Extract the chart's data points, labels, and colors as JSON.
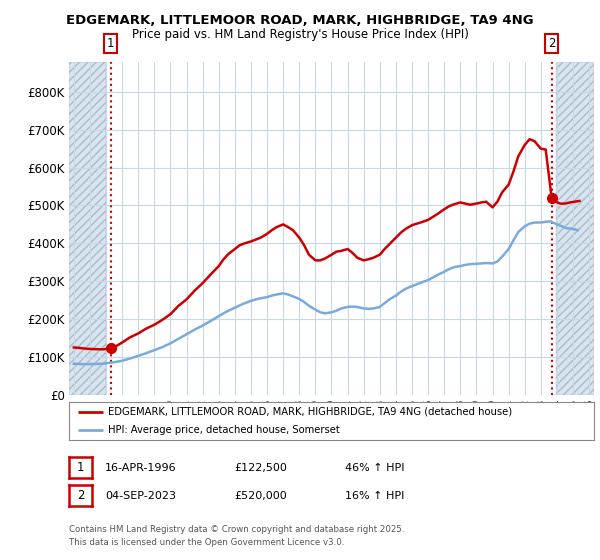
{
  "title1": "EDGEMARK, LITTLEMOOR ROAD, MARK, HIGHBRIDGE, TA9 4NG",
  "title2": "Price paid vs. HM Land Registry's House Price Index (HPI)",
  "ylim": [
    0,
    880000
  ],
  "xlim_start": 1993.7,
  "xlim_end": 2026.3,
  "yticks": [
    0,
    100000,
    200000,
    300000,
    400000,
    500000,
    600000,
    700000,
    800000
  ],
  "ytick_labels": [
    "£0",
    "£100K",
    "£200K",
    "£300K",
    "£400K",
    "£500K",
    "£600K",
    "£700K",
    "£800K"
  ],
  "xticks": [
    1994,
    1995,
    1996,
    1997,
    1998,
    1999,
    2000,
    2001,
    2002,
    2003,
    2004,
    2005,
    2006,
    2007,
    2008,
    2009,
    2010,
    2011,
    2012,
    2013,
    2014,
    2015,
    2016,
    2017,
    2018,
    2019,
    2020,
    2021,
    2022,
    2023,
    2024,
    2025,
    2026
  ],
  "bg_color": "#ffffff",
  "grid_color": "#c8d8e8",
  "hatch_color": "#d8e4ee",
  "red_line_color": "#cc0000",
  "blue_line_color": "#7aaadd",
  "vline_color": "#cc0000",
  "annotation_box_color": "#cc0000",
  "sale1_x": 1996.29,
  "sale1_y": 122500,
  "sale1_label": "1",
  "sale2_x": 2023.67,
  "sale2_y": 520000,
  "sale2_label": "2",
  "hatch_left_end": 1996.0,
  "hatch_right_start": 2023.92,
  "legend_line1": "EDGEMARK, LITTLEMOOR ROAD, MARK, HIGHBRIDGE, TA9 4NG (detached house)",
  "legend_line2": "HPI: Average price, detached house, Somerset",
  "footnote_line1": "Contains HM Land Registry data © Crown copyright and database right 2025.",
  "footnote_line2": "This data is licensed under the Open Government Licence v3.0.",
  "table_row1": [
    "1",
    "16-APR-1996",
    "£122,500",
    "46% ↑ HPI"
  ],
  "table_row2": [
    "2",
    "04-SEP-2023",
    "£520,000",
    "16% ↑ HPI"
  ],
  "red_line_x": [
    1994.0,
    1994.3,
    1994.6,
    1995.0,
    1995.4,
    1995.8,
    1996.0,
    1996.29,
    1996.6,
    1997.0,
    1997.5,
    1998.0,
    1998.5,
    1999.0,
    1999.5,
    2000.0,
    2000.5,
    2001.0,
    2001.5,
    2002.0,
    2002.5,
    2003.0,
    2003.3,
    2003.6,
    2004.0,
    2004.3,
    2004.6,
    2005.0,
    2005.3,
    2005.6,
    2006.0,
    2006.3,
    2006.6,
    2007.0,
    2007.3,
    2007.6,
    2008.0,
    2008.3,
    2008.6,
    2009.0,
    2009.3,
    2009.6,
    2010.0,
    2010.3,
    2010.6,
    2011.0,
    2011.3,
    2011.6,
    2012.0,
    2012.3,
    2012.6,
    2013.0,
    2013.3,
    2013.6,
    2014.0,
    2014.3,
    2014.6,
    2015.0,
    2015.3,
    2015.6,
    2016.0,
    2016.3,
    2016.6,
    2017.0,
    2017.3,
    2017.6,
    2018.0,
    2018.3,
    2018.6,
    2019.0,
    2019.3,
    2019.6,
    2020.0,
    2020.3,
    2020.6,
    2021.0,
    2021.3,
    2021.6,
    2022.0,
    2022.3,
    2022.6,
    2023.0,
    2023.3,
    2023.67,
    2023.92,
    2024.2,
    2024.5,
    2024.8,
    2025.1,
    2025.4
  ],
  "red_line_y": [
    125000,
    124000,
    122500,
    121000,
    120500,
    120000,
    121000,
    122500,
    128000,
    138000,
    152000,
    162000,
    175000,
    185000,
    198000,
    213000,
    235000,
    252000,
    275000,
    295000,
    318000,
    340000,
    358000,
    372000,
    385000,
    395000,
    400000,
    405000,
    410000,
    415000,
    425000,
    435000,
    443000,
    450000,
    443000,
    435000,
    415000,
    395000,
    370000,
    355000,
    355000,
    360000,
    370000,
    378000,
    380000,
    385000,
    375000,
    362000,
    355000,
    358000,
    362000,
    370000,
    385000,
    398000,
    415000,
    428000,
    438000,
    448000,
    452000,
    456000,
    462000,
    470000,
    478000,
    490000,
    498000,
    503000,
    508000,
    505000,
    502000,
    505000,
    508000,
    510000,
    495000,
    510000,
    535000,
    555000,
    590000,
    630000,
    660000,
    675000,
    670000,
    650000,
    648000,
    520000,
    510000,
    505000,
    505000,
    508000,
    510000,
    512000
  ],
  "blue_line_x": [
    1994.0,
    1994.3,
    1994.6,
    1995.0,
    1995.4,
    1995.8,
    1996.0,
    1996.5,
    1997.0,
    1997.5,
    1998.0,
    1998.5,
    1999.0,
    1999.5,
    2000.0,
    2000.5,
    2001.0,
    2001.5,
    2002.0,
    2002.5,
    2003.0,
    2003.5,
    2004.0,
    2004.5,
    2005.0,
    2005.3,
    2005.6,
    2006.0,
    2006.3,
    2006.6,
    2007.0,
    2007.3,
    2007.6,
    2008.0,
    2008.3,
    2008.6,
    2009.0,
    2009.3,
    2009.6,
    2010.0,
    2010.3,
    2010.6,
    2011.0,
    2011.3,
    2011.6,
    2012.0,
    2012.3,
    2012.6,
    2013.0,
    2013.3,
    2013.6,
    2014.0,
    2014.3,
    2014.6,
    2015.0,
    2015.3,
    2015.6,
    2016.0,
    2016.3,
    2016.6,
    2017.0,
    2017.3,
    2017.6,
    2018.0,
    2018.3,
    2018.6,
    2019.0,
    2019.3,
    2019.6,
    2020.0,
    2020.3,
    2020.6,
    2021.0,
    2021.3,
    2021.6,
    2022.0,
    2022.3,
    2022.6,
    2023.0,
    2023.3,
    2023.6,
    2024.0,
    2024.3,
    2024.6,
    2025.0,
    2025.3
  ],
  "blue_line_y": [
    82000,
    81500,
    81000,
    81000,
    81500,
    82000,
    83000,
    86000,
    90000,
    96000,
    103000,
    110000,
    118000,
    126000,
    136000,
    148000,
    160000,
    172000,
    183000,
    195000,
    208000,
    220000,
    230000,
    240000,
    248000,
    252000,
    255000,
    258000,
    262000,
    265000,
    268000,
    265000,
    260000,
    253000,
    245000,
    235000,
    225000,
    218000,
    215000,
    218000,
    222000,
    228000,
    232000,
    233000,
    232000,
    228000,
    227000,
    228000,
    232000,
    242000,
    252000,
    262000,
    272000,
    280000,
    287000,
    292000,
    297000,
    303000,
    310000,
    317000,
    325000,
    332000,
    337000,
    340000,
    343000,
    345000,
    346000,
    347000,
    348000,
    347000,
    352000,
    365000,
    385000,
    408000,
    430000,
    445000,
    452000,
    455000,
    455000,
    457000,
    458000,
    450000,
    445000,
    440000,
    438000,
    435000
  ]
}
